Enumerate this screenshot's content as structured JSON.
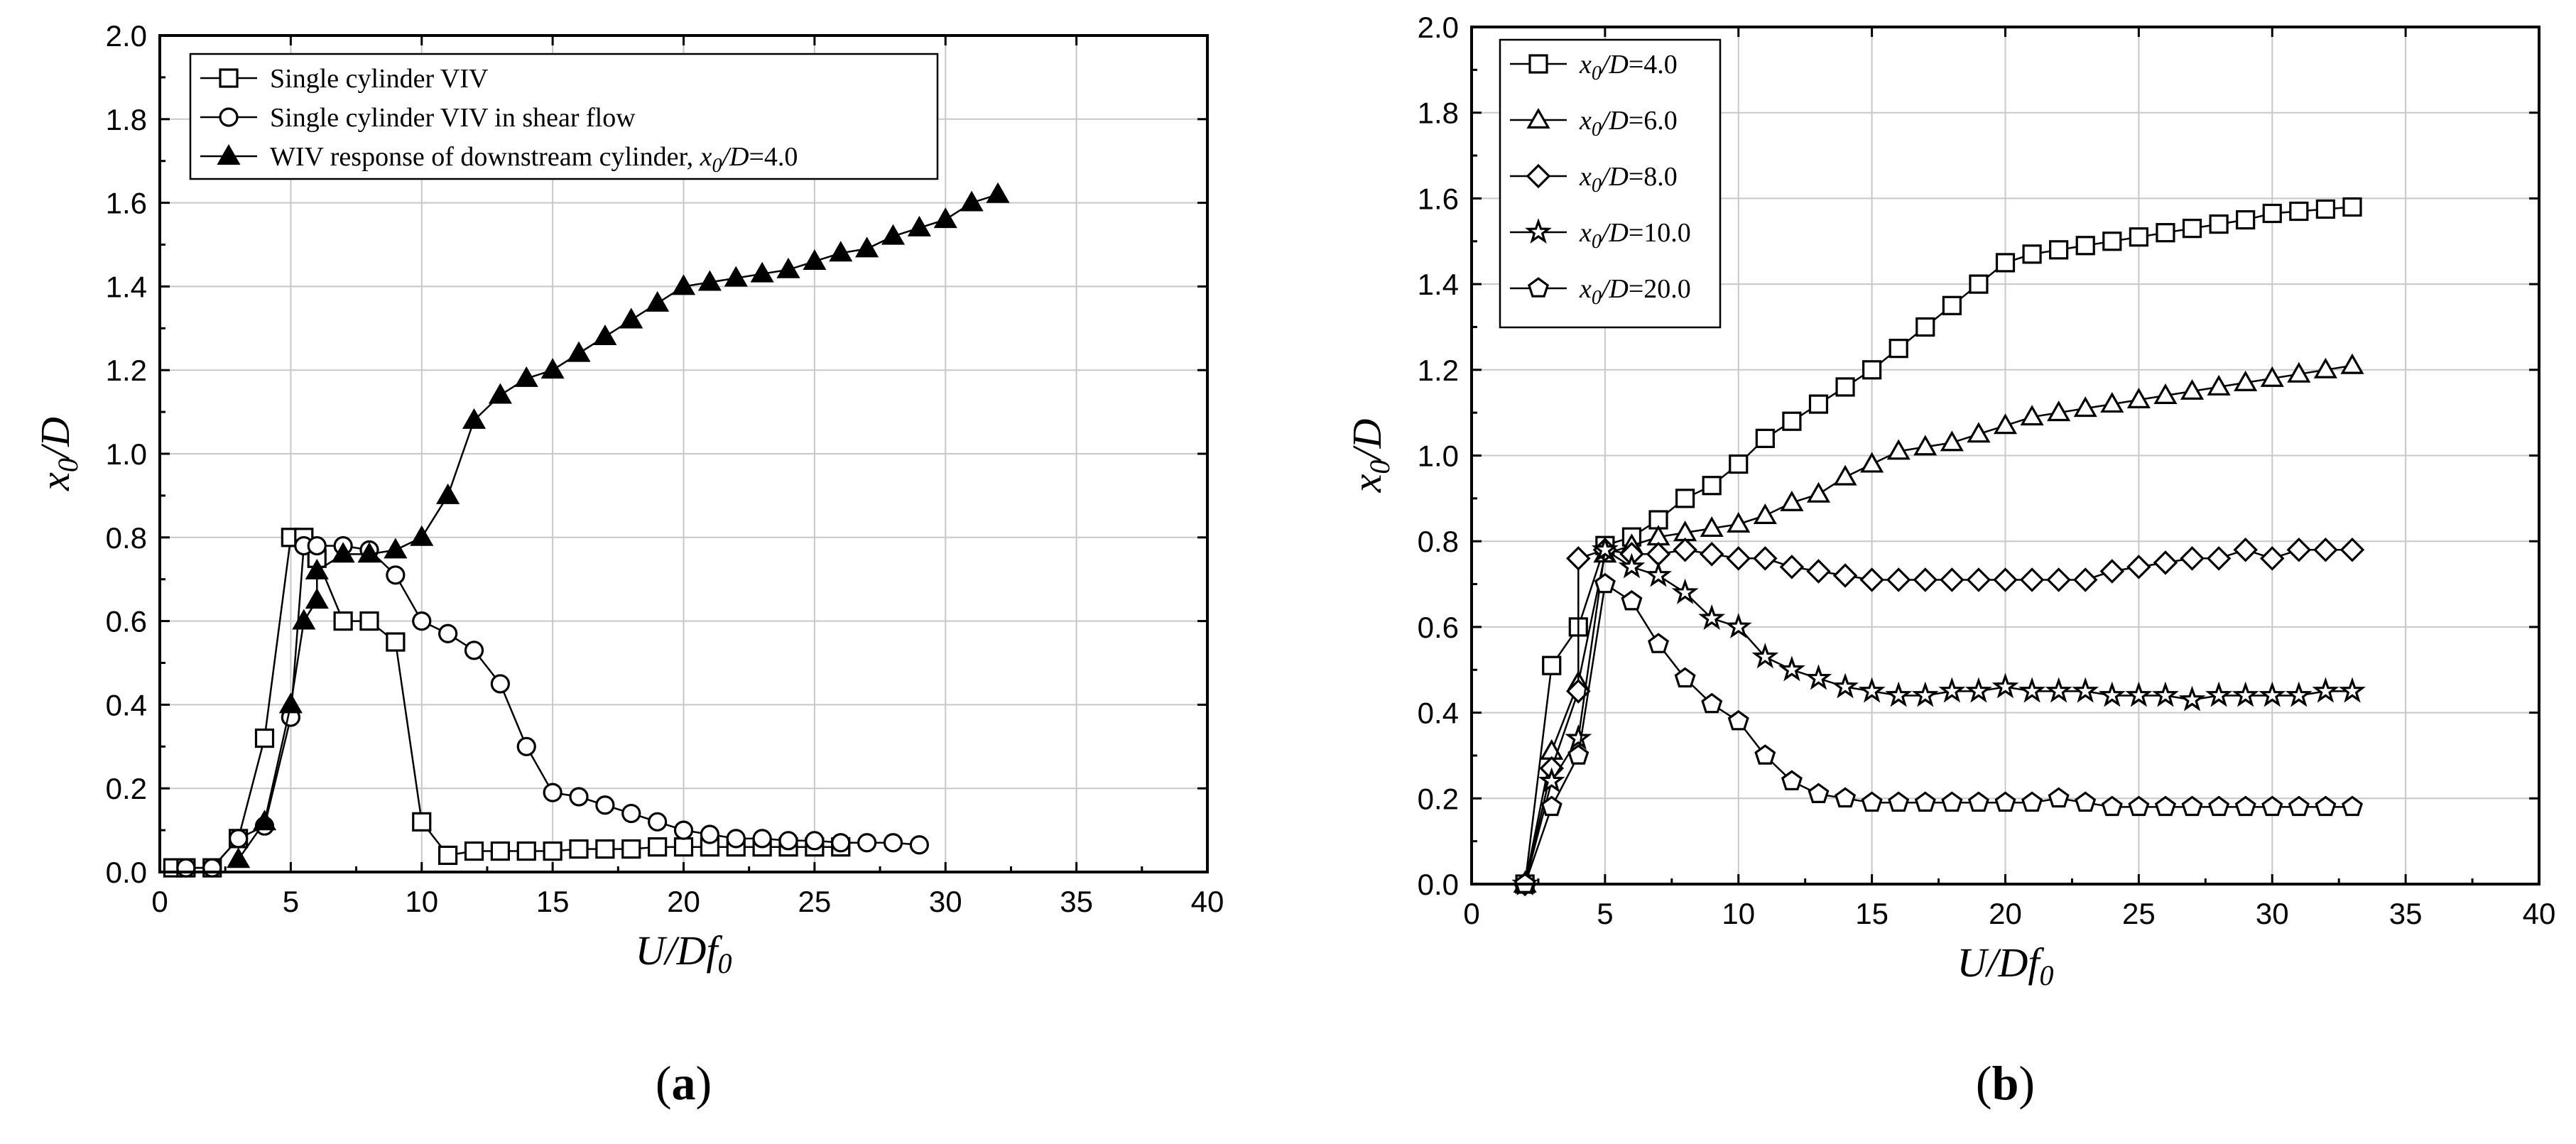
{
  "chart_data": [
    {
      "type": "line",
      "panel": "a",
      "panel_label": "(a)",
      "xlabel": "U/Df0",
      "ylabel": "x0/D",
      "xlim": [
        0,
        40
      ],
      "ylim": [
        0,
        2.0
      ],
      "xticks": [
        "0",
        "5",
        "10",
        "15",
        "20",
        "25",
        "30",
        "35",
        "40"
      ],
      "yticks": [
        "0.0",
        "0.2",
        "0.4",
        "0.6",
        "0.8",
        "1.0",
        "1.2",
        "1.4",
        "1.6",
        "1.8",
        "2.0"
      ],
      "grid": true,
      "legend_position": "top-left",
      "series": [
        {
          "name": "Single cylinder VIV",
          "legend_parts": {
            "text": "Single cylinder VIV"
          },
          "marker": "square",
          "filled": false,
          "x": [
            0.5,
            1,
            2,
            3,
            4,
            5,
            5.5,
            6,
            7,
            8,
            9,
            10,
            11,
            12,
            13,
            14,
            15,
            16,
            17,
            18,
            19,
            20,
            21,
            22,
            23,
            24,
            25,
            26
          ],
          "y": [
            0.01,
            0.01,
            0.01,
            0.08,
            0.32,
            0.8,
            0.8,
            0.75,
            0.6,
            0.6,
            0.55,
            0.12,
            0.04,
            0.05,
            0.05,
            0.05,
            0.05,
            0.055,
            0.055,
            0.055,
            0.06,
            0.06,
            0.06,
            0.06,
            0.06,
            0.06,
            0.06,
            0.06
          ]
        },
        {
          "name": "Single cylinder VIV in shear flow",
          "legend_parts": {
            "text": "Single cylinder VIV in shear flow"
          },
          "marker": "circle",
          "filled": false,
          "x": [
            1,
            2,
            3,
            4,
            5,
            5.5,
            6,
            7,
            8,
            9,
            10,
            11,
            12,
            13,
            14,
            15,
            16,
            17,
            18,
            19,
            20,
            21,
            22,
            23,
            24,
            25,
            26,
            27,
            28,
            29
          ],
          "y": [
            0.01,
            0.01,
            0.08,
            0.11,
            0.37,
            0.78,
            0.78,
            0.78,
            0.77,
            0.71,
            0.6,
            0.57,
            0.53,
            0.45,
            0.3,
            0.19,
            0.18,
            0.16,
            0.14,
            0.12,
            0.1,
            0.09,
            0.08,
            0.08,
            0.075,
            0.075,
            0.07,
            0.07,
            0.07,
            0.065
          ]
        },
        {
          "name": "WIV response of downstream cylinder, x0/D=4.0",
          "legend_parts": {
            "text": "WIV response of downstream cylinder, ",
            "var": "x",
            "sub": "0",
            "slash": "/D",
            "value": "=4.0"
          },
          "marker": "triangle",
          "filled": true,
          "x": [
            3,
            4,
            5,
            5.5,
            6,
            6,
            7,
            8,
            9,
            10,
            11,
            12,
            13,
            14,
            15,
            16,
            17,
            18,
            19,
            20,
            21,
            22,
            23,
            24,
            25,
            26,
            27,
            28,
            29,
            30,
            31,
            32
          ],
          "y": [
            0.03,
            0.12,
            0.4,
            0.6,
            0.65,
            0.72,
            0.76,
            0.76,
            0.77,
            0.8,
            0.9,
            1.08,
            1.14,
            1.18,
            1.2,
            1.24,
            1.28,
            1.32,
            1.36,
            1.4,
            1.41,
            1.42,
            1.43,
            1.44,
            1.46,
            1.48,
            1.49,
            1.52,
            1.54,
            1.56,
            1.6,
            1.62
          ]
        }
      ]
    },
    {
      "type": "line",
      "panel": "b",
      "panel_label": "(b)",
      "xlabel": "U/Df0",
      "ylabel": "x0/D",
      "xlim": [
        0,
        40
      ],
      "ylim": [
        0,
        2.0
      ],
      "xticks": [
        "0",
        "5",
        "10",
        "15",
        "20",
        "25",
        "30",
        "35",
        "40"
      ],
      "yticks": [
        "0.0",
        "0.2",
        "0.4",
        "0.6",
        "0.8",
        "1.0",
        "1.2",
        "1.4",
        "1.6",
        "1.8",
        "2.0"
      ],
      "grid": true,
      "legend_position": "top-left",
      "series": [
        {
          "name": "x0/D=4.0",
          "legend_parts": {
            "var": "x",
            "sub": "0",
            "slash": "/D",
            "value": "=4.0"
          },
          "marker": "square",
          "filled": false,
          "x": [
            2,
            3,
            4,
            5,
            6,
            7,
            8,
            9,
            10,
            11,
            12,
            13,
            14,
            15,
            16,
            17,
            18,
            19,
            20,
            21,
            22,
            23,
            24,
            25,
            26,
            27,
            28,
            29,
            30,
            31,
            32,
            33
          ],
          "y": [
            0.0,
            0.51,
            0.6,
            0.79,
            0.81,
            0.85,
            0.9,
            0.93,
            0.98,
            1.04,
            1.08,
            1.12,
            1.16,
            1.2,
            1.25,
            1.3,
            1.35,
            1.4,
            1.45,
            1.47,
            1.48,
            1.49,
            1.5,
            1.51,
            1.52,
            1.53,
            1.54,
            1.55,
            1.565,
            1.57,
            1.575,
            1.58
          ]
        },
        {
          "name": "x0/D=6.0",
          "legend_parts": {
            "var": "x",
            "sub": "0",
            "slash": "/D",
            "value": "=6.0"
          },
          "marker": "triangle",
          "filled": false,
          "x": [
            2,
            3,
            4,
            5,
            6,
            7,
            8,
            9,
            10,
            11,
            12,
            13,
            14,
            15,
            16,
            17,
            18,
            19,
            20,
            21,
            22,
            23,
            24,
            25,
            26,
            27,
            28,
            29,
            30,
            31,
            32,
            33
          ],
          "y": [
            0.0,
            0.31,
            0.47,
            0.77,
            0.79,
            0.81,
            0.82,
            0.83,
            0.84,
            0.86,
            0.89,
            0.91,
            0.95,
            0.98,
            1.01,
            1.02,
            1.03,
            1.05,
            1.07,
            1.09,
            1.1,
            1.11,
            1.12,
            1.13,
            1.14,
            1.15,
            1.16,
            1.17,
            1.18,
            1.19,
            1.2,
            1.21
          ]
        },
        {
          "name": "x0/D=8.0",
          "legend_parts": {
            "var": "x",
            "sub": "0",
            "slash": "/D",
            "value": "=8.0"
          },
          "marker": "diamond",
          "filled": false,
          "x": [
            2,
            3,
            4,
            4,
            5,
            6,
            7,
            8,
            9,
            10,
            11,
            12,
            13,
            14,
            15,
            16,
            17,
            18,
            19,
            20,
            21,
            22,
            23,
            24,
            25,
            26,
            27,
            28,
            29,
            30,
            31,
            32,
            33
          ],
          "y": [
            0.0,
            0.27,
            0.45,
            0.76,
            0.78,
            0.77,
            0.77,
            0.78,
            0.77,
            0.76,
            0.76,
            0.74,
            0.73,
            0.72,
            0.71,
            0.71,
            0.71,
            0.71,
            0.71,
            0.71,
            0.71,
            0.71,
            0.71,
            0.73,
            0.74,
            0.75,
            0.76,
            0.76,
            0.78,
            0.76,
            0.78,
            0.78,
            0.78
          ]
        },
        {
          "name": "x0/D=10.0",
          "legend_parts": {
            "var": "x",
            "sub": "0",
            "slash": "/D",
            "value": "=10.0"
          },
          "marker": "star",
          "filled": false,
          "x": [
            2,
            3,
            4,
            5,
            6,
            7,
            8,
            9,
            10,
            11,
            12,
            13,
            14,
            15,
            16,
            17,
            18,
            19,
            20,
            21,
            22,
            23,
            24,
            25,
            26,
            27,
            28,
            29,
            30,
            31,
            32,
            33
          ],
          "y": [
            0.0,
            0.24,
            0.34,
            0.78,
            0.74,
            0.72,
            0.68,
            0.62,
            0.6,
            0.53,
            0.5,
            0.48,
            0.46,
            0.45,
            0.44,
            0.44,
            0.45,
            0.45,
            0.46,
            0.45,
            0.45,
            0.45,
            0.44,
            0.44,
            0.44,
            0.43,
            0.44,
            0.44,
            0.44,
            0.44,
            0.45,
            0.45
          ]
        },
        {
          "name": "x0/D=20.0",
          "legend_parts": {
            "var": "x",
            "sub": "0",
            "slash": "/D",
            "value": "=20.0"
          },
          "marker": "pentagon",
          "filled": false,
          "x": [
            2,
            3,
            4,
            5,
            6,
            7,
            8,
            9,
            10,
            11,
            12,
            13,
            14,
            15,
            16,
            17,
            18,
            19,
            20,
            21,
            22,
            23,
            24,
            25,
            26,
            27,
            28,
            29,
            30,
            31,
            32,
            33
          ],
          "y": [
            0.0,
            0.18,
            0.3,
            0.7,
            0.66,
            0.56,
            0.48,
            0.42,
            0.38,
            0.3,
            0.24,
            0.21,
            0.2,
            0.19,
            0.19,
            0.19,
            0.19,
            0.19,
            0.19,
            0.19,
            0.2,
            0.19,
            0.18,
            0.18,
            0.18,
            0.18,
            0.18,
            0.18,
            0.18,
            0.18,
            0.18,
            0.18
          ]
        }
      ]
    }
  ]
}
